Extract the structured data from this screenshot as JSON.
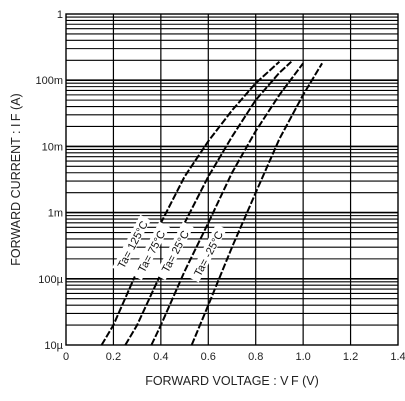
{
  "chart_data": {
    "type": "line",
    "xlabel": "FORWARD  VOLTAGE : V F (V)",
    "ylabel": "FORWARD  CURRENT : I F (A)",
    "xscale": "linear",
    "yscale": "log",
    "xlim": [
      0,
      1.4
    ],
    "ylim": [
      1e-05,
      1
    ],
    "grid": true,
    "x_ticks": [
      {
        "value": 0,
        "label": "0"
      },
      {
        "value": 0.2,
        "label": "0.2"
      },
      {
        "value": 0.4,
        "label": "0.4"
      },
      {
        "value": 0.6,
        "label": "0.6"
      },
      {
        "value": 0.8,
        "label": "0.8"
      },
      {
        "value": 1.0,
        "label": "1.0"
      },
      {
        "value": 1.2,
        "label": "1.2"
      },
      {
        "value": 1.4,
        "label": "1.4"
      }
    ],
    "y_ticks": [
      {
        "value": 1e-05,
        "label": "10µ"
      },
      {
        "value": 0.0001,
        "label": "100µ"
      },
      {
        "value": 0.001,
        "label": "1m"
      },
      {
        "value": 0.01,
        "label": "10m"
      },
      {
        "value": 0.1,
        "label": "100m"
      },
      {
        "value": 1,
        "label": "1"
      }
    ],
    "series": [
      {
        "name": "Ta= 125°C",
        "x": [
          0.15,
          0.2,
          0.3,
          0.4,
          0.5,
          0.6,
          0.7,
          0.8,
          0.9
        ],
        "y": [
          1e-05,
          2e-05,
          0.00013,
          0.0007,
          0.0035,
          0.012,
          0.035,
          0.09,
          0.19
        ]
      },
      {
        "name": "Ta= 75°C",
        "x": [
          0.25,
          0.3,
          0.4,
          0.5,
          0.6,
          0.7,
          0.8,
          0.9,
          0.95
        ],
        "y": [
          1e-05,
          2e-05,
          0.00012,
          0.0007,
          0.0035,
          0.014,
          0.05,
          0.13,
          0.19
        ]
      },
      {
        "name": "Ta= 25°C",
        "x": [
          0.36,
          0.4,
          0.5,
          0.6,
          0.7,
          0.8,
          0.9,
          1.0
        ],
        "y": [
          1e-05,
          2e-05,
          0.00013,
          0.0007,
          0.004,
          0.017,
          0.06,
          0.18
        ]
      },
      {
        "name": "Ta= -25°C",
        "x": [
          0.53,
          0.6,
          0.7,
          0.8,
          0.9,
          1.0,
          1.08
        ],
        "y": [
          1e-05,
          4e-05,
          0.0003,
          0.002,
          0.013,
          0.06,
          0.18
        ]
      }
    ]
  }
}
